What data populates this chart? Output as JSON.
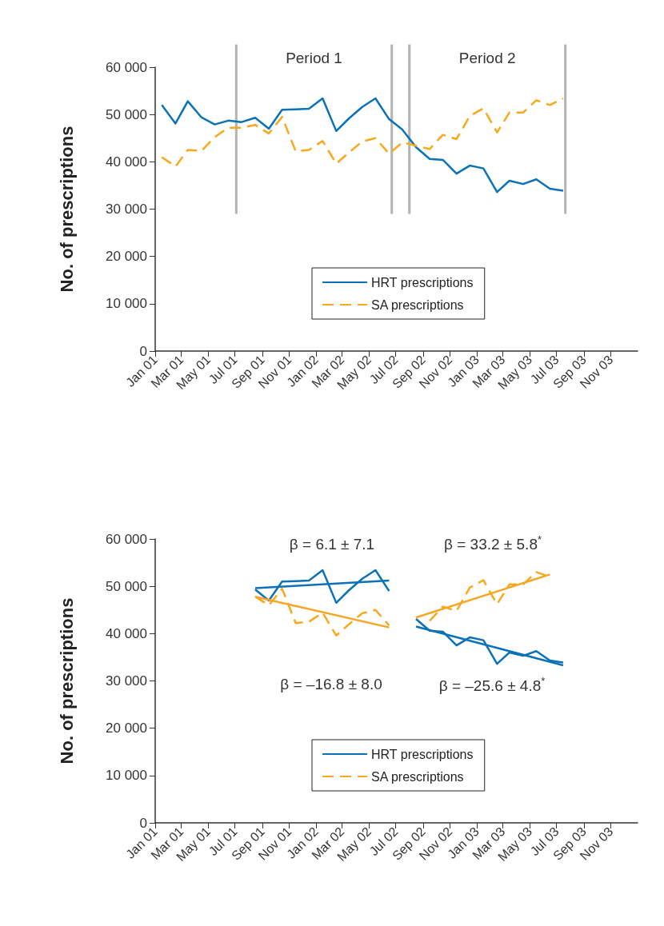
{
  "chart_data": [
    {
      "type": "line",
      "ylabel": "No. of prescriptions",
      "marker": "none",
      "grid": false,
      "legend": "bottom",
      "x": [
        "2001-01-16",
        "2001-02-16",
        "2001-03-16",
        "2001-04-16",
        "2001-05-16",
        "2001-06-16",
        "2001-07-16",
        "2001-08-16",
        "2001-09-16",
        "2001-10-16",
        "2001-11-16",
        "2001-12-16",
        "2002-01-16",
        "2002-02-16",
        "2002-03-16",
        "2002-04-16",
        "2002-05-16",
        "2002-06-16",
        "2002-07-16",
        "2002-08-16",
        "2002-09-16",
        "2002-10-16",
        "2002-11-16",
        "2002-12-16",
        "2003-01-16",
        "2003-02-16",
        "2003-03-16",
        "2003-04-16",
        "2003-05-16",
        "2003-06-16",
        "2003-07-16"
      ],
      "series": [
        {
          "name": "HRT prescriptions",
          "color": "#0b72b9",
          "line_style": "solid",
          "values": [
            52000,
            48100,
            52800,
            49400,
            47900,
            48700,
            48400,
            49300,
            47000,
            51000,
            51100,
            51200,
            53400,
            46500,
            49100,
            51600,
            53400,
            49000,
            46800,
            43100,
            40600,
            40400,
            37500,
            39200,
            38600,
            33600,
            36000,
            35300,
            36300,
            34300,
            33900
          ]
        },
        {
          "name": "SA prescriptions",
          "color": "#f9a81b",
          "line_style": "dashed",
          "values": [
            41000,
            39000,
            42500,
            42300,
            45200,
            47200,
            47200,
            47800,
            46000,
            49500,
            42200,
            42500,
            44400,
            39600,
            41900,
            44300,
            45000,
            41700,
            44100,
            43400,
            42700,
            45700,
            44800,
            49700,
            51300,
            46200,
            50400,
            50400,
            53000,
            52000,
            53400
          ]
        }
      ],
      "ref_lines": [
        {
          "axis": "x",
          "value": "2001-07-04",
          "color": "#b3b3b3"
        },
        {
          "axis": "x",
          "value": "2002-06-22",
          "color": "#b3b3b3"
        },
        {
          "axis": "x",
          "value": "2002-08-01",
          "color": "#b3b3b3"
        },
        {
          "axis": "x",
          "value": "2003-07-21",
          "color": "#b3b3b3"
        }
      ],
      "annotations": [
        "Period 1",
        "Period 2"
      ],
      "xlim": [
        "2001-01-01",
        "2004-01-01"
      ],
      "xticks": [
        {
          "value": "2001-01-01",
          "label": "Jan 01"
        },
        {
          "value": "2001-03-01",
          "label": "Mar 01"
        },
        {
          "value": "2001-05-01",
          "label": "May 01"
        },
        {
          "value": "2001-07-01",
          "label": "Jul 01"
        },
        {
          "value": "2001-09-01",
          "label": "Sep 01"
        },
        {
          "value": "2001-11-01",
          "label": "Nov 01"
        },
        {
          "value": "2002-01-01",
          "label": "Jan 02"
        },
        {
          "value": "2002-03-01",
          "label": "Mar 02"
        },
        {
          "value": "2002-05-01",
          "label": "May 02"
        },
        {
          "value": "2002-07-01",
          "label": "Jul 02"
        },
        {
          "value": "2002-09-01",
          "label": "Sep 02"
        },
        {
          "value": "2002-11-01",
          "label": "Nov 02"
        },
        {
          "value": "2003-01-01",
          "label": "Jan 03"
        },
        {
          "value": "2003-03-01",
          "label": "Mar 03"
        },
        {
          "value": "2003-05-01",
          "label": "May 03"
        },
        {
          "value": "2003-07-01",
          "label": "Jul 03"
        },
        {
          "value": "2003-09-01",
          "label": "Sep 03"
        },
        {
          "value": "2003-11-01",
          "label": "Nov 03"
        }
      ],
      "ylim": [
        0,
        60000
      ],
      "yticks": [
        0,
        {
          "value": 10000,
          "label": "10 000"
        },
        {
          "value": 20000,
          "label": "20 000"
        },
        {
          "value": 30000,
          "label": "30 000"
        },
        {
          "value": 40000,
          "label": "40 000"
        },
        {
          "value": 50000,
          "label": "50 000"
        },
        {
          "value": 60000,
          "label": "60 000"
        }
      ]
    },
    {
      "type": "line",
      "ylabel": "No. of prescriptions",
      "marker": "none",
      "grid": false,
      "legend": "bottom",
      "x": [
        "2001-08-16",
        "2001-09-16",
        "2001-10-16",
        "2001-11-16",
        "2001-12-16",
        "2002-01-16",
        "2002-02-16",
        "2002-03-16",
        "2002-04-16",
        "2002-05-16",
        "2002-06-16",
        "2002-07-16",
        "2002-08-16",
        "2002-09-16",
        "2002-10-16",
        "2002-11-16",
        "2002-12-16",
        "2003-01-16",
        "2003-02-16",
        "2003-03-16",
        "2003-04-16",
        "2003-05-16",
        "2003-06-16",
        "2003-07-16"
      ],
      "series": [
        {
          "name": "HRT prescriptions",
          "color": "#0b72b9",
          "line_style": "solid",
          "values": [
            49300,
            47000,
            51000,
            51100,
            51200,
            53400,
            46500,
            49100,
            51600,
            53400,
            49000,
            null,
            43100,
            40600,
            40400,
            37500,
            39200,
            38600,
            33600,
            36000,
            35300,
            36300,
            34300,
            33900
          ]
        },
        {
          "name": "SA prescriptions",
          "color": "#f9a81b",
          "line_style": "dashed",
          "values": [
            47800,
            46000,
            49500,
            42200,
            42500,
            44400,
            39600,
            41900,
            44300,
            45000,
            41700,
            null,
            null,
            42700,
            45700,
            44800,
            49700,
            51300,
            46200,
            50400,
            50400,
            53000,
            52000,
            null
          ]
        },
        {
          "type": "line",
          "color": "#0b72b9",
          "line_style": "solid",
          "x": [
            "2001-08-16",
            "2002-06-16"
          ],
          "values": [
            49600,
            51200
          ]
        },
        {
          "type": "line",
          "color": "#f6a623",
          "line_style": "solid",
          "x": [
            "2001-08-16",
            "2002-06-16"
          ],
          "values": [
            47800,
            41300
          ]
        },
        {
          "type": "line",
          "color": "#0b72b9",
          "line_style": "solid",
          "x": [
            "2002-08-16",
            "2003-07-16"
          ],
          "values": [
            41500,
            33300
          ]
        },
        {
          "type": "line",
          "color": "#f6a623",
          "line_style": "solid",
          "x": [
            "2002-08-16",
            "2003-06-16"
          ],
          "values": [
            43400,
            52500
          ]
        }
      ],
      "annotations": [
        "β = 6.1 ± 7.1",
        "β = 33.2 ± 5.8$^{*}$",
        "β = –16.8 ± 8.0",
        "β = –25.6 ± 4.8$^{*}$"
      ],
      "xlim": [
        "2001-01-01",
        "2004-01-01"
      ],
      "xticks": [
        {
          "value": "2001-01-01",
          "label": "Jan 01"
        },
        {
          "value": "2001-03-01",
          "label": "Mar 01"
        },
        {
          "value": "2001-05-01",
          "label": "May 01"
        },
        {
          "value": "2001-07-01",
          "label": "Jul 01"
        },
        {
          "value": "2001-09-01",
          "label": "Sep 01"
        },
        {
          "value": "2001-11-01",
          "label": "Nov 01"
        },
        {
          "value": "2002-01-01",
          "label": "Jan 02"
        },
        {
          "value": "2002-03-01",
          "label": "Mar 02"
        },
        {
          "value": "2002-05-01",
          "label": "May 02"
        },
        {
          "value": "2002-07-01",
          "label": "Jul 02"
        },
        {
          "value": "2002-09-01",
          "label": "Sep 02"
        },
        {
          "value": "2002-11-01",
          "label": "Nov 02"
        },
        {
          "value": "2003-01-01",
          "label": "Jan 03"
        },
        {
          "value": "2003-03-01",
          "label": "Mar 03"
        },
        {
          "value": "2003-05-01",
          "label": "May 03"
        },
        {
          "value": "2003-07-01",
          "label": "Jul 03"
        },
        {
          "value": "2003-09-01",
          "label": "Sep 03"
        },
        {
          "value": "2003-11-01",
          "label": "Nov 03"
        }
      ],
      "ylim": [
        0,
        60000
      ],
      "yticks": [
        0,
        {
          "value": 10000,
          "label": "10 000"
        },
        {
          "value": 20000,
          "label": "20 000"
        },
        {
          "value": 30000,
          "label": "30 000"
        },
        {
          "value": 40000,
          "label": "40 000"
        },
        {
          "value": 50000,
          "label": "50 000"
        },
        {
          "value": 60000,
          "label": "60 000"
        }
      ]
    }
  ]
}
